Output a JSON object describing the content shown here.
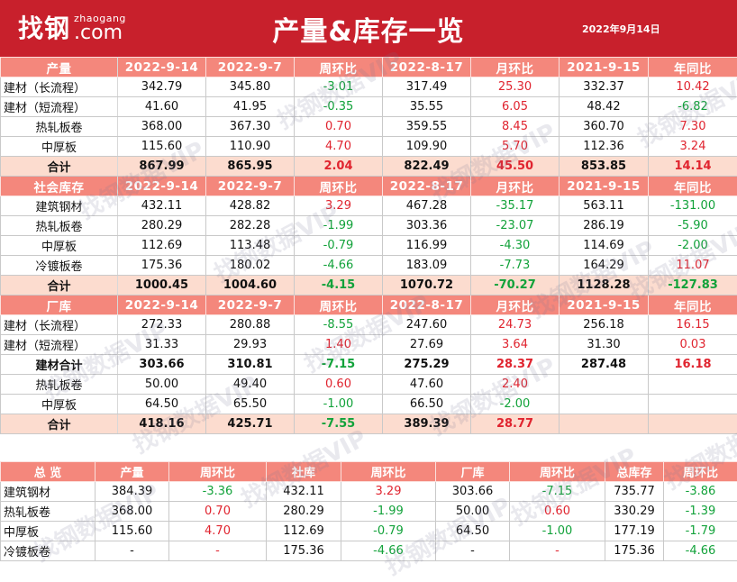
{
  "header": {
    "logo_cn": "找钢",
    "logo_en_small": "zhaogang",
    "logo_en_big": ".com",
    "title": "产量&库存一览",
    "date": "2022年9月14日",
    "bg_color": "#c8202c"
  },
  "colors": {
    "header_row": "#f4877c",
    "total_row": "#fcdccf",
    "up": "#e0242f",
    "down": "#12a23a"
  },
  "main_table": {
    "sections": [
      {
        "header": [
          "产量",
          "2022-9-14",
          "2022-9-7",
          "周环比",
          "2022-8-17",
          "月环比",
          "2021-9-15",
          "年同比"
        ],
        "rows": [
          {
            "cells": [
              "建材（长流程）",
              "342.79",
              "345.80",
              "-3.01",
              "317.49",
              "25.30",
              "332.37",
              "10.42"
            ],
            "bold": false,
            "total": false
          },
          {
            "cells": [
              "建材（短流程）",
              "41.60",
              "41.95",
              "-0.35",
              "35.55",
              "6.05",
              "48.42",
              "-6.82"
            ],
            "bold": false,
            "total": false
          },
          {
            "cells": [
              "热轧板卷",
              "368.00",
              "367.30",
              "0.70",
              "359.55",
              "8.45",
              "360.70",
              "7.30"
            ],
            "bold": false,
            "total": false
          },
          {
            "cells": [
              "中厚板",
              "115.60",
              "110.90",
              "4.70",
              "109.90",
              "5.70",
              "112.36",
              "3.24"
            ],
            "bold": false,
            "total": false
          },
          {
            "cells": [
              "合计",
              "867.99",
              "865.95",
              "2.04",
              "822.49",
              "45.50",
              "853.85",
              "14.14"
            ],
            "bold": true,
            "total": true
          }
        ]
      },
      {
        "header": [
          "社会库存",
          "2022-9-14",
          "2022-9-7",
          "周环比",
          "2022-8-17",
          "月环比",
          "2021-9-15",
          "年同比"
        ],
        "rows": [
          {
            "cells": [
              "建筑钢材",
              "432.11",
              "428.82",
              "3.29",
              "467.28",
              "-35.17",
              "563.11",
              "-131.00"
            ],
            "bold": false,
            "total": false
          },
          {
            "cells": [
              "热轧板卷",
              "280.29",
              "282.28",
              "-1.99",
              "303.36",
              "-23.07",
              "286.19",
              "-5.90"
            ],
            "bold": false,
            "total": false
          },
          {
            "cells": [
              "中厚板",
              "112.69",
              "113.48",
              "-0.79",
              "116.99",
              "-4.30",
              "114.69",
              "-2.00"
            ],
            "bold": false,
            "total": false
          },
          {
            "cells": [
              "冷镀板卷",
              "175.36",
              "180.02",
              "-4.66",
              "183.09",
              "-7.73",
              "164.29",
              "11.07"
            ],
            "bold": false,
            "total": false
          },
          {
            "cells": [
              "合计",
              "1000.45",
              "1004.60",
              "-4.15",
              "1070.72",
              "-70.27",
              "1128.28",
              "-127.83"
            ],
            "bold": true,
            "total": true
          }
        ]
      },
      {
        "header": [
          "厂库",
          "2022-9-14",
          "2022-9-7",
          "周环比",
          "2022-8-17",
          "月环比",
          "2021-9-15",
          "年同比"
        ],
        "rows": [
          {
            "cells": [
              "建材（长流程）",
              "272.33",
              "280.88",
              "-8.55",
              "247.60",
              "24.73",
              "256.18",
              "16.15"
            ],
            "bold": false,
            "total": false
          },
          {
            "cells": [
              "建材（短流程）",
              "31.33",
              "29.93",
              "1.40",
              "27.69",
              "3.64",
              "31.30",
              "0.03"
            ],
            "bold": false,
            "total": false
          },
          {
            "cells": [
              "建材合计",
              "303.66",
              "310.81",
              "-7.15",
              "275.29",
              "28.37",
              "287.48",
              "16.18"
            ],
            "bold": true,
            "total": false
          },
          {
            "cells": [
              "热轧板卷",
              "50.00",
              "49.40",
              "0.60",
              "47.60",
              "2.40",
              "",
              ""
            ],
            "bold": false,
            "total": false
          },
          {
            "cells": [
              "中厚板",
              "64.50",
              "65.50",
              "-1.00",
              "66.50",
              "-2.00",
              "",
              ""
            ],
            "bold": false,
            "total": false
          },
          {
            "cells": [
              "合计",
              "418.16",
              "425.71",
              "-7.55",
              "389.39",
              "28.77",
              "",
              ""
            ],
            "bold": true,
            "total": true
          }
        ]
      }
    ]
  },
  "overview_table": {
    "header": [
      "总 览",
      "产量",
      "周环比",
      "社库",
      "周环比",
      "厂库",
      "周环比",
      "总库存",
      "周环比"
    ],
    "rows": [
      [
        "建筑钢材",
        "384.39",
        "-3.36",
        "432.11",
        "3.29",
        "303.66",
        "-7.15",
        "735.77",
        "-3.86"
      ],
      [
        "热轧板卷",
        "368.00",
        "0.70",
        "280.29",
        "-1.99",
        "50.00",
        "0.60",
        "330.29",
        "-1.39"
      ],
      [
        "中厚板",
        "115.60",
        "4.70",
        "112.69",
        "-0.79",
        "64.50",
        "-1.00",
        "177.19",
        "-1.79"
      ],
      [
        "冷镀板卷",
        "-",
        "-",
        "175.36",
        "-4.66",
        "-",
        "-",
        "175.36",
        "-4.66"
      ]
    ]
  },
  "watermark": "找钢数据VIP"
}
